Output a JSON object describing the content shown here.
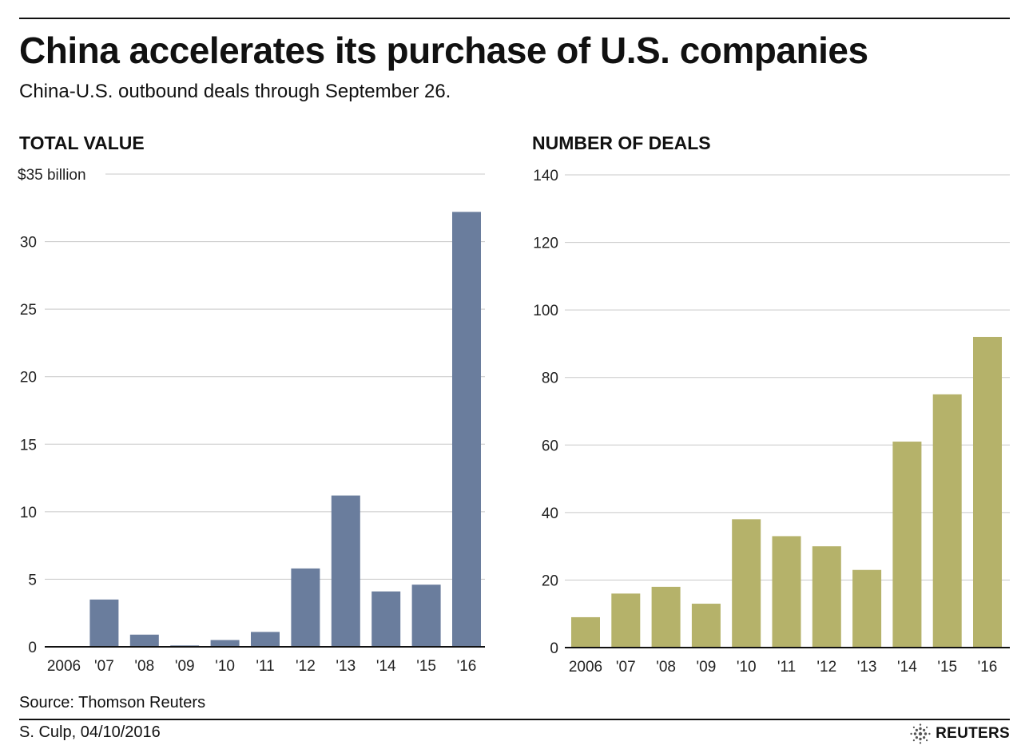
{
  "header": {
    "title": "China accelerates its purchase of U.S. companies",
    "subtitle": "China-U.S. outbound deals through September 26."
  },
  "footer": {
    "source": "Source:  Thomson Reuters",
    "credit": "S. Culp,  04/10/2016",
    "logo_text": "REUTERS"
  },
  "chart_data": [
    {
      "type": "bar",
      "title": "TOTAL VALUE",
      "categories": [
        "2006",
        "'07",
        "'08",
        "'09",
        "'10",
        "'11",
        "'12",
        "'13",
        "'14",
        "'15",
        "'16"
      ],
      "values": [
        0.05,
        3.5,
        0.9,
        0.1,
        0.5,
        1.1,
        5.8,
        11.2,
        4.1,
        4.6,
        32.2
      ],
      "ylim": [
        0,
        35
      ],
      "yticks": [
        0,
        5,
        10,
        15,
        20,
        25,
        30,
        35
      ],
      "ytick_labels": [
        "0",
        "5",
        "10",
        "15",
        "20",
        "25",
        "30",
        "$35 billion"
      ],
      "grid": true,
      "color": "#6a7d9d"
    },
    {
      "type": "bar",
      "title": "NUMBER OF DEALS",
      "categories": [
        "2006",
        "'07",
        "'08",
        "'09",
        "'10",
        "'11",
        "'12",
        "'13",
        "'14",
        "'15",
        "'16"
      ],
      "values": [
        9,
        16,
        18,
        13,
        38,
        33,
        30,
        23,
        61,
        75,
        92
      ],
      "ylim": [
        0,
        140
      ],
      "yticks": [
        0,
        20,
        40,
        60,
        80,
        100,
        120,
        140
      ],
      "ytick_labels": [
        "0",
        "20",
        "40",
        "60",
        "80",
        "100",
        "120",
        "140"
      ],
      "grid": true,
      "color": "#b5b26a"
    }
  ]
}
